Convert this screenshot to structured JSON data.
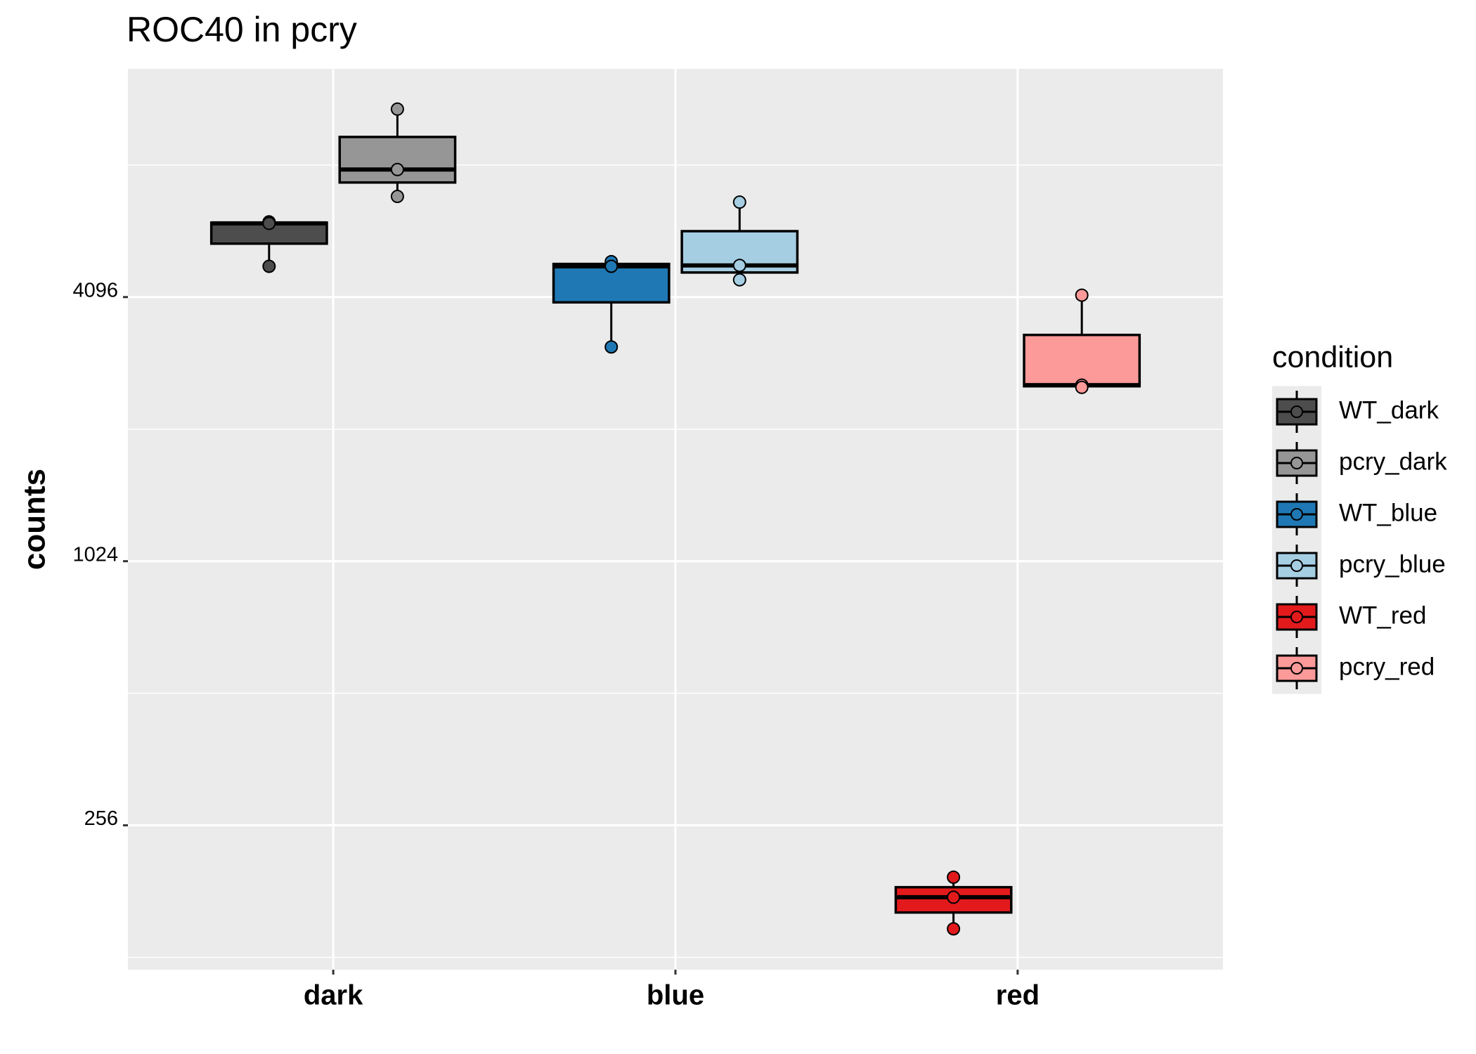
{
  "chart_data": {
    "type": "boxplot",
    "title": "ROC40 in pcry",
    "y_label": "counts",
    "legend_title": "condition",
    "categories": [
      "dark",
      "blue",
      "red"
    ],
    "y_scale": "log2",
    "ylim": [
      120,
      13570
    ],
    "yticks": [
      256,
      1024,
      4096
    ],
    "minor_grid": [
      128,
      512,
      2048,
      8192
    ],
    "grid": true,
    "legend_position": "right",
    "series": [
      {
        "name": "WT_dark",
        "color": "#4D4D4D",
        "category": 0,
        "min": 4814,
        "q1": 5422,
        "median": 6030,
        "q3": 6055,
        "max": 6080,
        "points": [
          6080,
          6030,
          4814
        ]
      },
      {
        "name": "pcry_dark",
        "color": "#969696",
        "category": 0,
        "min": 6947,
        "q1": 7474,
        "median": 8000,
        "q3": 9492,
        "max": 10985,
        "points": [
          10985,
          8000,
          6947
        ]
      },
      {
        "name": "WT_blue",
        "color": "#1F78B4",
        "category": 1,
        "min": 3153,
        "q1": 3984,
        "median": 4814,
        "q3": 4874,
        "max": 4934,
        "points": [
          4934,
          4814,
          3153
        ]
      },
      {
        "name": "pcry_blue",
        "color": "#A6CEE3",
        "category": 1,
        "min": 4485,
        "q1": 4660,
        "median": 4836,
        "q3": 5789,
        "max": 6742,
        "points": [
          6742,
          4836,
          4485
        ]
      },
      {
        "name": "WT_red",
        "color": "#E31A1C",
        "category": 2,
        "min": 148.7,
        "q1": 162,
        "median": 175.5,
        "q3": 185,
        "max": 195,
        "points": [
          195,
          175.5,
          148.7
        ]
      },
      {
        "name": "pcry_red",
        "color": "#FB9A99",
        "category": 2,
        "min": 2550,
        "q1": 2565,
        "median": 2580,
        "q3": 3358,
        "max": 4137,
        "points": [
          4137,
          2580,
          2550
        ]
      }
    ]
  }
}
